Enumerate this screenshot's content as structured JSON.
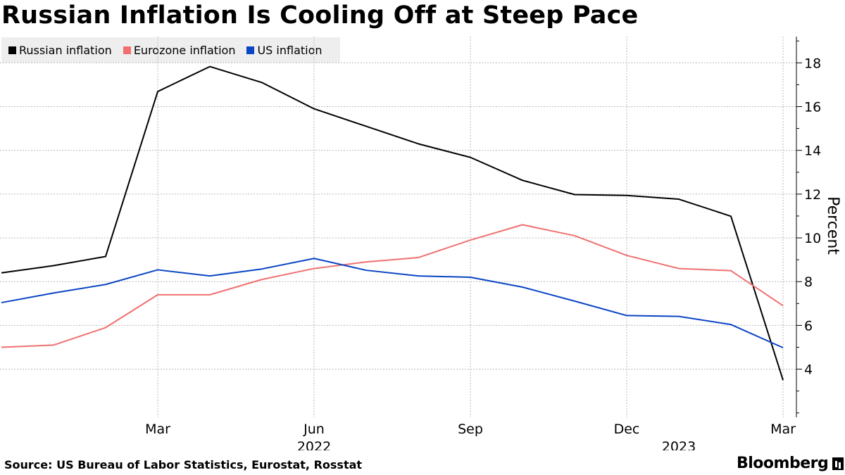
{
  "title": "Russian Inflation Is Cooling Off at Steep Pace",
  "source": "Source: US Bureau of Labor Statistics, Eurostat, Rosstat",
  "brand": "Bloomberg",
  "chart_data": {
    "type": "line",
    "x": [
      "2022-01",
      "2022-02",
      "2022-03",
      "2022-04",
      "2022-05",
      "2022-06",
      "2022-07",
      "2022-08",
      "2022-09",
      "2022-10",
      "2022-11",
      "2022-12",
      "2023-01",
      "2023-02",
      "2023-03"
    ],
    "series": [
      {
        "name": "Russian inflation",
        "color": "#000000",
        "values": [
          8.73,
          9.15,
          16.69,
          17.83,
          17.1,
          15.9,
          15.1,
          14.3,
          13.68,
          12.63,
          11.98,
          11.94,
          11.77,
          10.99,
          3.5
        ]
      },
      {
        "name": "Eurozone inflation",
        "color": "#f07070",
        "values": [
          5.1,
          5.9,
          7.4,
          7.4,
          8.1,
          8.6,
          8.9,
          9.1,
          9.9,
          10.6,
          10.1,
          9.2,
          8.6,
          8.5,
          6.9
        ]
      },
      {
        "name": "US inflation",
        "color": "#0a45c4",
        "values": [
          7.48,
          7.87,
          8.54,
          8.26,
          8.58,
          9.06,
          8.52,
          8.26,
          8.2,
          7.75,
          7.11,
          6.45,
          6.41,
          6.04,
          4.98
        ]
      }
    ],
    "lead_in": {
      "x": "2021-12",
      "values": [
        8.4,
        5.0,
        7.04
      ]
    },
    "x_ticks": [
      "Mar",
      "Jun",
      "Sep",
      "Dec",
      "Mar"
    ],
    "x_tick_dates": [
      "2022-03",
      "2022-06",
      "2022-09",
      "2022-12",
      "2023-03"
    ],
    "year_labels": [
      "2022",
      "2023"
    ],
    "year_label_dates": [
      "2022-06",
      "2023-01"
    ],
    "y_ticks": [
      4,
      6,
      8,
      10,
      12,
      14,
      16,
      18
    ],
    "ylim": [
      1.8,
      19.2
    ],
    "ylabel": "Percent",
    "grid": true,
    "legend_placement": "top-left"
  }
}
